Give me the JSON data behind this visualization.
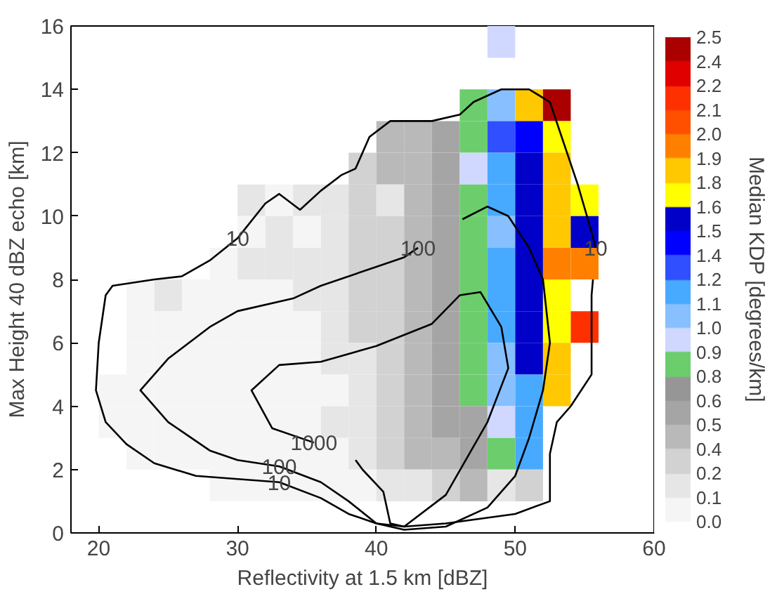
{
  "chart_data": {
    "type": "heatmap",
    "xlabel": "Reflectivity at 1.5 km [dBZ]",
    "ylabel": "Max Height 40 dBZ echo [km]",
    "clabel": "Median KDP [degrees/km]",
    "xlim": [
      18,
      60
    ],
    "ylim": [
      0,
      16
    ],
    "xticks": [
      20,
      30,
      40,
      50,
      60
    ],
    "yticks": [
      0,
      2,
      4,
      6,
      8,
      10,
      12,
      14,
      16
    ],
    "clim": [
      0,
      2.5
    ],
    "cticks": [
      {
        "value": 0,
        "label": "0.0"
      },
      {
        "value": 0.125,
        "label": "0.1"
      },
      {
        "value": 0.25,
        "label": "0.2"
      },
      {
        "value": 0.375,
        "label": "0.4"
      },
      {
        "value": 0.5,
        "label": "0.5"
      },
      {
        "value": 0.625,
        "label": "0.6"
      },
      {
        "value": 0.75,
        "label": "0.8"
      },
      {
        "value": 0.875,
        "label": "0.9"
      },
      {
        "value": 1.0,
        "label": "1.0"
      },
      {
        "value": 1.125,
        "label": "1.1"
      },
      {
        "value": 1.25,
        "label": "1.2"
      },
      {
        "value": 1.375,
        "label": "1.4"
      },
      {
        "value": 1.5,
        "label": "1.5"
      },
      {
        "value": 1.625,
        "label": "1.6"
      },
      {
        "value": 1.75,
        "label": "1.8"
      },
      {
        "value": 1.875,
        "label": "1.9"
      },
      {
        "value": 2.0,
        "label": "2.0"
      },
      {
        "value": 2.125,
        "label": "2.1"
      },
      {
        "value": 2.25,
        "label": "2.2"
      },
      {
        "value": 2.375,
        "label": "2.4"
      },
      {
        "value": 2.5,
        "label": "2.5"
      }
    ],
    "colors": [
      "#f5f5f5",
      "#e6e6e6",
      "#d2d2d2",
      "#b9b9b9",
      "#a5a5a5",
      "#969696",
      "#6ccd6c",
      "#d0d8ff",
      "#87bfff",
      "#48aaff",
      "#3050ff",
      "#0000ff",
      "#0000c8",
      "#ffff00",
      "#ffc800",
      "#ff8000",
      "#ff5000",
      "#ff3000",
      "#e00000",
      "#aa0000"
    ],
    "x": [
      21,
      23,
      25,
      27,
      29,
      31,
      33,
      35,
      37,
      39,
      41,
      43,
      45,
      47,
      49,
      51,
      53,
      55
    ],
    "y": [
      15.5,
      13.5,
      12.5,
      11.5,
      10.5,
      9.5,
      8.5,
      7.5,
      6.5,
      5.5,
      4.5,
      3.5,
      2.5,
      1.5
    ],
    "cells": [
      [
        null,
        null,
        null,
        null,
        null,
        null,
        null,
        null,
        null,
        null,
        null,
        null,
        null,
        null,
        0.94,
        null,
        null,
        null
      ],
      [
        null,
        null,
        null,
        null,
        null,
        null,
        null,
        null,
        null,
        null,
        null,
        null,
        null,
        0.81,
        1.06,
        1.81,
        2.44,
        null
      ],
      [
        null,
        null,
        null,
        null,
        null,
        null,
        null,
        null,
        null,
        null,
        0.44,
        0.44,
        0.56,
        0.81,
        1.31,
        1.44,
        1.69,
        null
      ],
      [
        null,
        null,
        null,
        null,
        null,
        null,
        null,
        null,
        null,
        0.31,
        0.44,
        0.44,
        0.56,
        0.94,
        1.19,
        1.56,
        1.81,
        null
      ],
      [
        null,
        null,
        null,
        null,
        null,
        0.19,
        0.06,
        0.19,
        0.19,
        0.31,
        0.19,
        0.44,
        0.56,
        0.81,
        1.19,
        1.56,
        1.81,
        1.69
      ],
      [
        null,
        null,
        null,
        null,
        null,
        0.06,
        0.19,
        0.06,
        0.19,
        0.31,
        0.31,
        0.44,
        0.56,
        0.81,
        1.06,
        1.56,
        1.81,
        1.56
      ],
      [
        null,
        null,
        null,
        null,
        0.06,
        0.19,
        0.19,
        0.19,
        0.19,
        0.31,
        0.31,
        0.44,
        0.56,
        0.81,
        1.19,
        1.56,
        1.94,
        1.94
      ],
      [
        null,
        0.06,
        0.19,
        0.06,
        0.06,
        0.06,
        0.06,
        0.19,
        0.19,
        0.31,
        0.31,
        0.44,
        0.56,
        0.81,
        1.19,
        1.56,
        1.69,
        null
      ],
      [
        null,
        0.06,
        0.06,
        0.06,
        0.06,
        0.06,
        0.06,
        0.06,
        0.19,
        0.31,
        0.31,
        0.44,
        0.56,
        0.81,
        1.19,
        1.56,
        1.69,
        2.19
      ],
      [
        null,
        0.06,
        0.06,
        0.06,
        0.06,
        0.06,
        0.06,
        0.06,
        0.19,
        0.19,
        0.31,
        0.44,
        0.56,
        0.81,
        1.06,
        1.56,
        1.81,
        null
      ],
      [
        0.06,
        0.06,
        0.06,
        0.06,
        0.06,
        0.06,
        0.06,
        0.06,
        0.06,
        0.19,
        0.31,
        0.44,
        0.56,
        0.81,
        1.06,
        1.19,
        1.81,
        null
      ],
      [
        0.06,
        0.06,
        0.06,
        0.06,
        0.06,
        0.06,
        0.06,
        0.06,
        0.19,
        0.19,
        0.31,
        0.44,
        0.56,
        0.56,
        0.94,
        1.19,
        null,
        null
      ],
      [
        null,
        0.06,
        0.06,
        0.06,
        0.06,
        0.06,
        0.06,
        0.06,
        0.06,
        0.19,
        0.31,
        0.44,
        0.44,
        0.56,
        0.81,
        1.19,
        null,
        null
      ],
      [
        null,
        null,
        null,
        null,
        0.06,
        0.06,
        0.06,
        0.06,
        0.06,
        0.06,
        0.19,
        0.19,
        0.31,
        0.44,
        0.19,
        0.31,
        null,
        null
      ]
    ],
    "series": [
      {
        "type": "line",
        "color": "#000000",
        "x": [
          55.6,
          55.5,
          55.5,
          55.5,
          54,
          53,
          52.5,
          52.5,
          50,
          45,
          42,
          40,
          38,
          36,
          33,
          30,
          27,
          24,
          22,
          20.5,
          19.8,
          20,
          20.5,
          21,
          24,
          26,
          28,
          30,
          32,
          33,
          34.5,
          36,
          37.5,
          38.5,
          39.5,
          41,
          44,
          46,
          47,
          49,
          51,
          52.5,
          53.5,
          54.5,
          55.5,
          55.8
        ],
        "values": [
          8.0,
          7.5,
          6,
          5,
          4,
          3.5,
          2.5,
          1,
          0.6,
          0.3,
          0.2,
          0.3,
          0.6,
          1.1,
          1.6,
          1.7,
          1.8,
          2.2,
          2.8,
          3.5,
          4.5,
          6,
          7.5,
          7.8,
          8,
          8.1,
          8.6,
          9.3,
          10.4,
          10.7,
          10.2,
          10.8,
          11.3,
          11.5,
          12.5,
          13,
          13,
          13.2,
          13.6,
          14,
          14,
          13.6,
          12.3,
          11,
          9.5,
          9.0
        ]
      },
      {
        "type": "line",
        "color": "#000000",
        "x": [
          43,
          42,
          40,
          36,
          34,
          30,
          28,
          25,
          23,
          25,
          28,
          30,
          33,
          36,
          38,
          40,
          42,
          45,
          48,
          50,
          51,
          52,
          52.5,
          52,
          51,
          49.5,
          48,
          46.2
        ],
        "values": [
          9.0,
          8.7,
          8.4,
          7.8,
          7.4,
          7.0,
          6.5,
          5.5,
          4.5,
          3.5,
          2.6,
          2.3,
          2.1,
          1.6,
          1.0,
          0.3,
          0.1,
          0.2,
          0.8,
          1.8,
          3.0,
          4.5,
          6.0,
          8.0,
          9.0,
          10.0,
          10.3,
          9.9
        ]
      },
      {
        "type": "line",
        "color": "#000000",
        "x": [
          35.5,
          34.5,
          32.5,
          31,
          33,
          36,
          40,
          44,
          46,
          47.5,
          49,
          49.5,
          48,
          45,
          42,
          41,
          40.5,
          39,
          38.5
        ],
        "values": [
          2.85,
          3.0,
          3.3,
          4.5,
          5.3,
          5.4,
          5.9,
          6.6,
          7.5,
          7.6,
          6.5,
          5.2,
          3.5,
          1.2,
          0.2,
          0.3,
          1.3,
          2.0,
          2.3
        ]
      }
    ],
    "annotations": [
      {
        "text": "10",
        "x": 30,
        "y": 9.3
      },
      {
        "text": "100",
        "x": 43,
        "y": 9.0
      },
      {
        "text": "10",
        "x": 55.8,
        "y": 9.0
      },
      {
        "text": "1000",
        "x": 35.5,
        "y": 2.85
      },
      {
        "text": "100",
        "x": 33,
        "y": 2.1
      },
      {
        "text": "10",
        "x": 33,
        "y": 1.6
      }
    ]
  }
}
